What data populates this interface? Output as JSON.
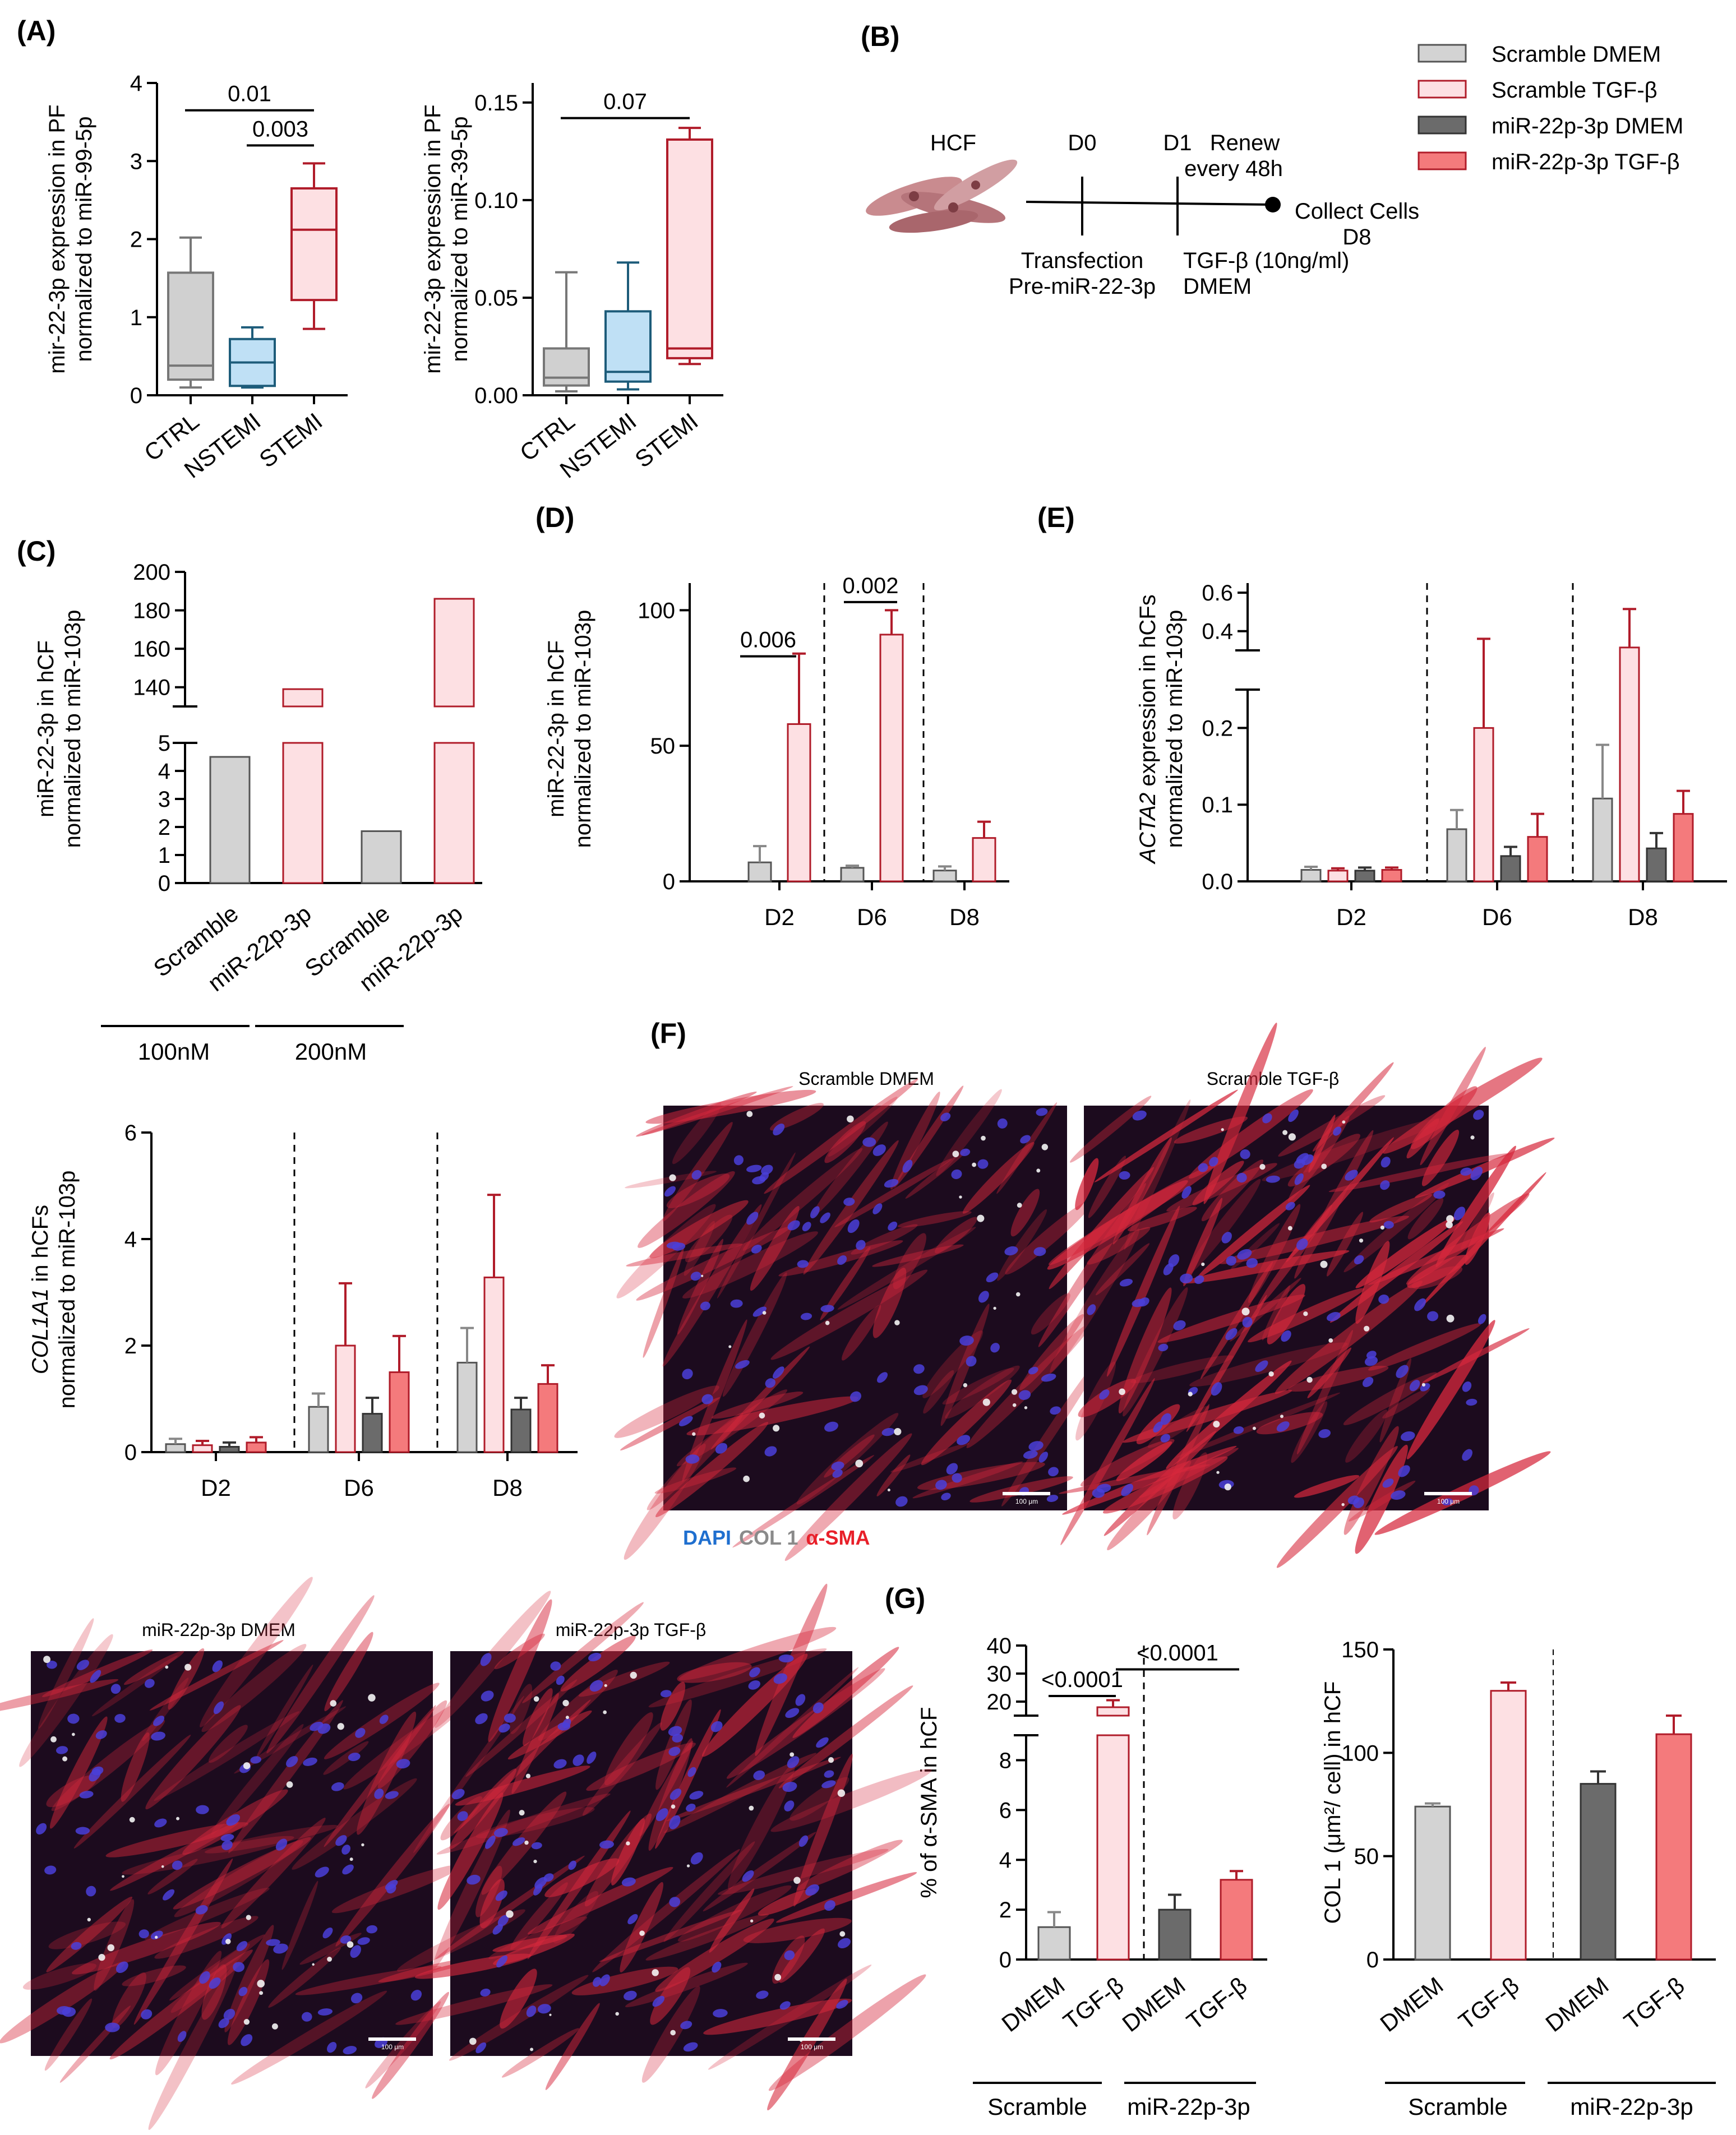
{
  "colors": {
    "scramble_dmem": "#d3d3d3",
    "scramble_tgf": "#fde0e3",
    "mir_dmem": "#6b6b6b",
    "mir_tgf": "#f47a7c",
    "dark_red": "#b01c2a",
    "ctrl_box": "#d0d0d0",
    "nstemi_box": "#bfe0f5",
    "nstemi_edge": "#1d5c7a",
    "stemi_box": "#fde0e3",
    "stemi_edge": "#b01c2a",
    "dapi": "#1f6fcf",
    "col1": "#8a8a8a",
    "asma": "#e8202a"
  },
  "legend": {
    "items": [
      "Scramble DMEM",
      "Scramble TGF-β",
      "miR-22p-3p DMEM",
      "miR-22p-3p TGF-β"
    ]
  },
  "panel_labels": {
    "A": "(A)",
    "B": "(B)",
    "C": "(C)",
    "D": "(D)",
    "E": "(E)",
    "F": "(F)",
    "G": "(G)"
  },
  "schematic": {
    "cell_label": "HCF",
    "d0": "D0",
    "d1": "D1",
    "renew_line1": "Renew",
    "renew_line2": "every 48h",
    "collect_line1": "Collect Cells",
    "collect_line2": "D8",
    "transfection_line1": "Transfection",
    "transfection_line2": "Pre-miR-22-3p",
    "tgf_line1": "TGF-β (10ng/ml)",
    "tgf_line2": "DMEM"
  },
  "microscopy": {
    "stain_dapi": "DAPI",
    "stain_col1": "COL 1",
    "stain_asma": "α-SMA",
    "scale_bar": "100 μm",
    "titles": [
      "Scramble DMEM",
      "Scramble TGF-β",
      "miR-22p-3p DMEM",
      "miR-22p-3p TGF-β"
    ]
  },
  "chart_data": [
    {
      "id": "A1",
      "type": "box",
      "ylabel_line1": "mir-22-3p expression in PF",
      "ylabel_line2": "normalized to miR-99-5p",
      "ylim": [
        0,
        4
      ],
      "yticks": [
        "0",
        "1",
        "2",
        "3",
        "4"
      ],
      "categories": [
        "CTRL",
        "NSTEMI",
        "STEMI"
      ],
      "boxes": [
        {
          "min": 0.1,
          "q1": 0.2,
          "median": 0.38,
          "q3": 1.57,
          "max": 2.02
        },
        {
          "min": 0.1,
          "q1": 0.12,
          "median": 0.42,
          "q3": 0.72,
          "max": 0.87
        },
        {
          "min": 0.85,
          "q1": 1.22,
          "median": 2.12,
          "q3": 2.65,
          "max": 2.97
        }
      ],
      "annotations": [
        {
          "text": "0.01",
          "from": 0,
          "to": 2,
          "y": 3.65
        },
        {
          "text": "0.003",
          "from": 1,
          "to": 2,
          "y": 3.2
        }
      ]
    },
    {
      "id": "A2",
      "type": "box",
      "ylabel_line1": "mir-22-3p expression in PF",
      "ylabel_line2": "normalized to miR-39-5p",
      "ylim": [
        0,
        0.16
      ],
      "yticks": [
        "0.00",
        "0.05",
        "0.10",
        "0.15"
      ],
      "categories": [
        "CTRL",
        "NSTEMI",
        "STEMI"
      ],
      "boxes": [
        {
          "min": 0.002,
          "q1": 0.005,
          "median": 0.009,
          "q3": 0.024,
          "max": 0.063
        },
        {
          "min": 0.003,
          "q1": 0.007,
          "median": 0.012,
          "q3": 0.043,
          "max": 0.068
        },
        {
          "min": 0.016,
          "q1": 0.019,
          "median": 0.024,
          "q3": 0.131,
          "max": 0.137
        }
      ],
      "annotations": [
        {
          "text": "0.07",
          "from": 0,
          "to": 2,
          "y": 0.142
        }
      ]
    },
    {
      "id": "C",
      "type": "bar",
      "ylabel_line1": "miR-22-3p in hCF",
      "ylabel_line2": "normalized to miR-103p",
      "categories": [
        "Scramble",
        "miR-22p-3p",
        "Scramble",
        "miR-22p-3p"
      ],
      "values": [
        4.5,
        139,
        1.85,
        186
      ],
      "groups": [
        "100nM",
        "200nM"
      ],
      "lower_ticks": [
        "0",
        "1",
        "2",
        "3",
        "4",
        "5"
      ],
      "upper_ticks": [
        "140",
        "160",
        "180",
        "200"
      ],
      "broken_axis": {
        "lower": [
          0,
          5
        ],
        "upper": [
          130,
          200
        ]
      }
    },
    {
      "id": "D",
      "type": "bar",
      "ylabel_line1": "miR-22-3p in hCF",
      "ylabel_line2": "normalized to miR-103p",
      "ylim": [
        0,
        110
      ],
      "yticks": [
        "0",
        "50",
        "100"
      ],
      "categories": [
        "D2",
        "D6",
        "D8"
      ],
      "series": [
        {
          "name": "Scramble DMEM",
          "values": [
            7,
            5,
            4
          ],
          "errors": [
            6,
            0.8,
            1.5
          ]
        },
        {
          "name": "Scramble TGF-β",
          "values": [
            58,
            91,
            16
          ],
          "errors": [
            26,
            9,
            6
          ]
        }
      ],
      "annotations": [
        {
          "text": "0.006",
          "group": 0,
          "y": 83
        },
        {
          "text": "0.002",
          "group": 1,
          "y": 103
        }
      ]
    },
    {
      "id": "E",
      "type": "bar",
      "ylabel_line1": "ACTA2",
      "ylabel_line2": " expression in hCFs",
      "ylabel_line3": "normalized to miR-103p",
      "categories": [
        "D2",
        "D6",
        "D8"
      ],
      "yticks": [
        "0.0",
        "0.1",
        "0.2",
        "0.4",
        "0.6"
      ],
      "broken_axis": {
        "lower": [
          0,
          0.25
        ],
        "upper": [
          0.3,
          0.65
        ]
      },
      "series": [
        {
          "name": "Scramble DMEM",
          "values": [
            0.015,
            0.068,
            0.108
          ],
          "errors": [
            0.004,
            0.025,
            0.07
          ]
        },
        {
          "name": "Scramble TGF-β",
          "values": [
            0.014,
            0.2,
            0.315
          ],
          "errors": [
            0.003,
            0.16,
            0.2
          ]
        },
        {
          "name": "miR-22p-3p DMEM",
          "values": [
            0.014,
            0.033,
            0.043
          ],
          "errors": [
            0.004,
            0.012,
            0.02
          ]
        },
        {
          "name": "miR-22p-3p TGF-β",
          "values": [
            0.015,
            0.058,
            0.088
          ],
          "errors": [
            0.003,
            0.03,
            0.03
          ]
        }
      ]
    },
    {
      "id": "COL1A1",
      "type": "bar",
      "ylabel_line1": "COL1A1",
      "ylabel_line2": " in hCFs",
      "ylabel_line3": "normalized to miR-103p",
      "ylim": [
        0,
        6
      ],
      "yticks": [
        "0",
        "2",
        "4",
        "6"
      ],
      "categories": [
        "D2",
        "D6",
        "D8"
      ],
      "series": [
        {
          "name": "Scramble DMEM",
          "values": [
            0.15,
            0.85,
            1.68
          ],
          "errors": [
            0.1,
            0.25,
            0.65
          ]
        },
        {
          "name": "Scramble TGF-β",
          "values": [
            0.13,
            2.0,
            3.28
          ],
          "errors": [
            0.08,
            1.17,
            1.55
          ]
        },
        {
          "name": "miR-22p-3p DMEM",
          "values": [
            0.1,
            0.72,
            0.8
          ],
          "errors": [
            0.08,
            0.3,
            0.22
          ]
        },
        {
          "name": "miR-22p-3p TGF-β",
          "values": [
            0.18,
            1.5,
            1.28
          ],
          "errors": [
            0.1,
            0.68,
            0.35
          ]
        }
      ]
    },
    {
      "id": "G1",
      "type": "bar",
      "ylabel": "% of α-SMA in hCF",
      "categories": [
        "DMEM",
        "TGF-β",
        "DMEM",
        "TGF-β"
      ],
      "groups": [
        "Scramble",
        "miR-22p-3p"
      ],
      "values": [
        1.3,
        18,
        2.0,
        3.2
      ],
      "errors": [
        0.6,
        2.5,
        0.6,
        0.35
      ],
      "lower_ticks": [
        "0",
        "2",
        "4",
        "6",
        "8"
      ],
      "upper_ticks": [
        "20",
        "30",
        "40"
      ],
      "broken_axis": {
        "lower": [
          0,
          9
        ],
        "upper": [
          15,
          40
        ]
      },
      "annotations": [
        {
          "text": "<0.0001",
          "from": 0,
          "to": 1,
          "y": 22
        },
        {
          "text": "<0.0001",
          "from": 1,
          "to": 3,
          "y": 31.5
        }
      ]
    },
    {
      "id": "G2",
      "type": "bar",
      "ylabel": "COL 1 (μm²/ cell) in hCF",
      "ylim": [
        0,
        150
      ],
      "yticks": [
        "0",
        "50",
        "100",
        "150"
      ],
      "categories": [
        "DMEM",
        "TGF-β",
        "DMEM",
        "TGF-β"
      ],
      "groups": [
        "Scramble",
        "miR-22p-3p"
      ],
      "values": [
        74,
        130,
        85,
        109
      ],
      "errors": [
        1.5,
        4,
        6,
        9
      ]
    }
  ]
}
